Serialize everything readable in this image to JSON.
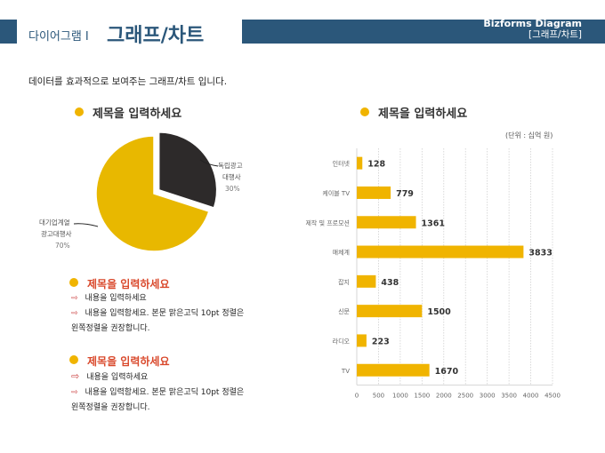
{
  "header": {
    "subtitle": "다이어그램 I",
    "title": "그래프/차트",
    "brand": "Bizforms Diagram",
    "brand_sub": "[그래프/차트]"
  },
  "intro": "데이터를 효과적으로 보여주는 그래프/차트 입니다.",
  "pie_section": {
    "title": "제목을 입력하세요"
  },
  "bar_section": {
    "title": "제목을 입력하세요",
    "unit": "(단위 : 십억 원)"
  },
  "text_blocks": [
    {
      "title": "제목을 입력하세요",
      "line1": "내용을 입력하세요",
      "line2": "내용을 입력함세요. 본문 맑은고딕 10pt 정렬은",
      "line3": "왼쪽정렬을 권장합니다."
    },
    {
      "title": "제목을 입력하세요",
      "line1": "내용을 입력하세요",
      "line2": "내용을 입력함세요. 본문 맑은고딕 10pt 정렬은",
      "line3": "왼쪽정렬을 권장합니다."
    }
  ],
  "icons": {
    "bullet": "hexagon-bullet-icon",
    "arrow": "arrow-right-icon"
  },
  "colors": {
    "primary": "#2b577a",
    "accent": "#f0b400",
    "dark": "#2d2a2a",
    "red_title": "#d9482b"
  },
  "chart_data": [
    {
      "type": "pie",
      "title": "제목을 입력하세요",
      "slices": [
        {
          "label_line1": "독립광고",
          "label_line2": "대행사",
          "value": 30,
          "pct_label": "30%",
          "color": "#2d2a2a",
          "exploded": true
        },
        {
          "label_line1": "대기업계열",
          "label_line2": "광고대행사",
          "value": 70,
          "pct_label": "70%",
          "color": "#e8b800",
          "exploded": false
        }
      ]
    },
    {
      "type": "bar",
      "orientation": "horizontal",
      "title": "제목을 입력하세요",
      "unit": "(단위 : 십억 원)",
      "categories": [
        "인터넷",
        "케이블 TV",
        "제작 및 프로모션",
        "매체계",
        "잡지",
        "신문",
        "라디오",
        "TV"
      ],
      "values": [
        128,
        779,
        1361,
        3833,
        438,
        1500,
        223,
        1670
      ],
      "value_labels": [
        "128",
        "779",
        "1361",
        "3833",
        "438",
        "1500",
        "223",
        "1670"
      ],
      "xlim": [
        0,
        4500
      ],
      "xticks": [
        "0",
        "500",
        "1000",
        "1500",
        "2000",
        "2500",
        "3000",
        "3500",
        "4000",
        "4500"
      ],
      "grid": "vertical dotted",
      "color": "#f0b400"
    }
  ]
}
